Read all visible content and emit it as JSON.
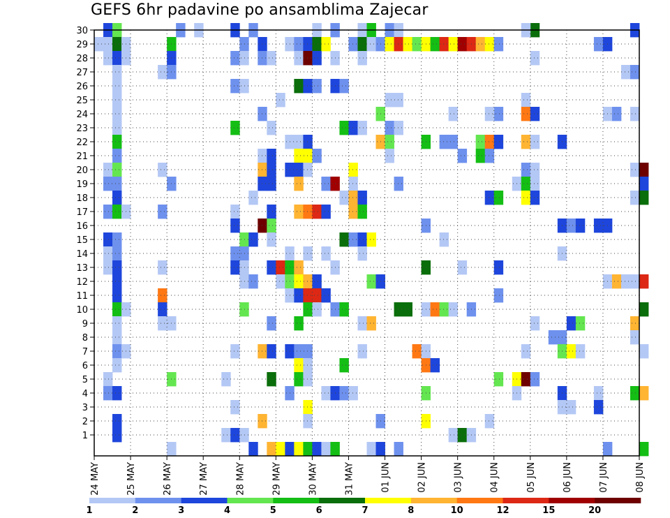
{
  "chart_data": {
    "type": "heatmap",
    "title": "GEFS 6hr padavine po ansamblima Zajecar",
    "xlabel": "",
    "ylabel": "",
    "x_tick_labels": [
      "24 MAY",
      "25 MAY",
      "26 MAY",
      "27 MAY",
      "28 MAY",
      "29 MAY",
      "30 MAY",
      "31 MAY",
      "01 JUN",
      "02 JUN",
      "03 JUN",
      "04 JUN",
      "05 JUN",
      "06 JUN",
      "07 JUN",
      "08 JUN"
    ],
    "y_tick_labels": [
      "1",
      "2",
      "3",
      "4",
      "5",
      "6",
      "7",
      "8",
      "9",
      "10",
      "11",
      "12",
      "13",
      "14",
      "15",
      "16",
      "17",
      "18",
      "19",
      "20",
      "21",
      "22",
      "23",
      "24",
      "25",
      "26",
      "27",
      "28",
      "29",
      "30"
    ],
    "x_range_days": [
      0,
      15
    ],
    "steps_per_day": 4,
    "ylim": [
      0,
      30
    ],
    "grid": true,
    "legend": {
      "placement": "bottom",
      "ticks": [
        "1",
        "2",
        "3",
        "4",
        "5",
        "6",
        "7",
        "8",
        "10",
        "12",
        "15",
        "20"
      ],
      "colors": [
        "#b4c8f5",
        "#6e91ee",
        "#1e46dc",
        "#64e650",
        "#14be14",
        "#0a6e0a",
        "#ffff00",
        "#ffb432",
        "#ff7814",
        "#dc2814",
        "#a00000",
        "#6e0000"
      ]
    },
    "cells": [
      [
        1,
        30,
        2
      ],
      [
        2,
        30,
        3
      ],
      [
        9,
        30,
        1
      ],
      [
        11,
        30,
        0
      ],
      [
        15,
        30,
        2
      ],
      [
        17,
        30,
        1
      ],
      [
        24,
        30,
        0
      ],
      [
        29,
        30,
        0
      ],
      [
        32,
        30,
        1
      ],
      [
        33,
        30,
        0
      ],
      [
        26,
        30,
        1
      ],
      [
        30,
        30,
        4
      ],
      [
        48,
        30,
        5
      ],
      [
        47,
        30,
        0
      ],
      [
        59,
        30,
        2
      ],
      [
        0,
        29,
        0
      ],
      [
        1,
        29,
        0
      ],
      [
        2,
        29,
        5
      ],
      [
        3,
        29,
        0
      ],
      [
        8,
        29,
        4
      ],
      [
        16,
        29,
        1
      ],
      [
        18,
        29,
        2
      ],
      [
        21,
        29,
        0
      ],
      [
        22,
        29,
        1
      ],
      [
        23,
        29,
        2
      ],
      [
        24,
        29,
        5
      ],
      [
        25,
        29,
        6
      ],
      [
        28,
        29,
        1
      ],
      [
        29,
        29,
        5
      ],
      [
        30,
        29,
        0
      ],
      [
        31,
        29,
        1
      ],
      [
        32,
        29,
        6
      ],
      [
        33,
        29,
        9
      ],
      [
        34,
        29,
        6
      ],
      [
        35,
        29,
        3
      ],
      [
        36,
        29,
        6
      ],
      [
        37,
        29,
        4
      ],
      [
        38,
        29,
        9
      ],
      [
        39,
        29,
        6
      ],
      [
        40,
        29,
        10
      ],
      [
        41,
        29,
        9
      ],
      [
        42,
        29,
        7
      ],
      [
        43,
        29,
        6
      ],
      [
        44,
        29,
        1
      ],
      [
        55,
        29,
        1
      ],
      [
        56,
        29,
        2
      ],
      [
        1,
        28,
        0
      ],
      [
        2,
        28,
        2
      ],
      [
        3,
        28,
        0
      ],
      [
        8,
        28,
        2
      ],
      [
        15,
        28,
        1
      ],
      [
        16,
        28,
        0
      ],
      [
        18,
        28,
        1
      ],
      [
        19,
        28,
        0
      ],
      [
        22,
        28,
        0
      ],
      [
        23,
        28,
        11
      ],
      [
        24,
        28,
        2
      ],
      [
        26,
        28,
        0
      ],
      [
        29,
        28,
        0
      ],
      [
        48,
        28,
        0
      ],
      [
        2,
        27,
        0
      ],
      [
        7,
        27,
        0
      ],
      [
        8,
        27,
        1
      ],
      [
        58,
        27,
        0
      ],
      [
        59,
        27,
        1
      ],
      [
        2,
        26,
        0
      ],
      [
        15,
        26,
        1
      ],
      [
        16,
        26,
        0
      ],
      [
        22,
        26,
        5
      ],
      [
        23,
        26,
        2
      ],
      [
        24,
        26,
        1
      ],
      [
        26,
        26,
        2
      ],
      [
        27,
        26,
        1
      ],
      [
        2,
        25,
        0
      ],
      [
        20,
        25,
        0
      ],
      [
        32,
        25,
        0
      ],
      [
        33,
        25,
        0
      ],
      [
        47,
        25,
        0
      ],
      [
        2,
        24,
        0
      ],
      [
        18,
        24,
        1
      ],
      [
        31,
        24,
        3
      ],
      [
        39,
        24,
        0
      ],
      [
        44,
        24,
        1
      ],
      [
        43,
        24,
        0
      ],
      [
        47,
        24,
        8
      ],
      [
        48,
        24,
        2
      ],
      [
        56,
        24,
        0
      ],
      [
        57,
        24,
        1
      ],
      [
        59,
        24,
        0
      ],
      [
        2,
        23,
        0
      ],
      [
        15,
        23,
        4
      ],
      [
        19,
        23,
        0
      ],
      [
        27,
        23,
        4
      ],
      [
        28,
        23,
        2
      ],
      [
        29,
        23,
        0
      ],
      [
        32,
        23,
        1
      ],
      [
        33,
        23,
        0
      ],
      [
        2,
        22,
        4
      ],
      [
        21,
        22,
        0
      ],
      [
        22,
        22,
        0
      ],
      [
        23,
        22,
        2
      ],
      [
        31,
        22,
        7
      ],
      [
        32,
        22,
        3
      ],
      [
        36,
        22,
        4
      ],
      [
        38,
        22,
        1
      ],
      [
        39,
        22,
        1
      ],
      [
        42,
        22,
        3
      ],
      [
        43,
        22,
        8
      ],
      [
        44,
        22,
        2
      ],
      [
        47,
        22,
        7
      ],
      [
        48,
        22,
        0
      ],
      [
        51,
        22,
        2
      ],
      [
        2,
        21,
        1
      ],
      [
        18,
        21,
        0
      ],
      [
        19,
        21,
        2
      ],
      [
        22,
        21,
        6
      ],
      [
        23,
        21,
        6
      ],
      [
        24,
        21,
        1
      ],
      [
        32,
        21,
        0
      ],
      [
        40,
        21,
        1
      ],
      [
        42,
        21,
        4
      ],
      [
        43,
        21,
        1
      ],
      [
        1,
        20,
        0
      ],
      [
        2,
        20,
        3
      ],
      [
        7,
        20,
        0
      ],
      [
        18,
        20,
        7
      ],
      [
        19,
        20,
        2
      ],
      [
        21,
        20,
        2
      ],
      [
        22,
        20,
        2
      ],
      [
        23,
        20,
        0
      ],
      [
        28,
        20,
        6
      ],
      [
        47,
        20,
        1
      ],
      [
        48,
        20,
        0
      ],
      [
        59,
        20,
        0
      ],
      [
        60,
        20,
        11
      ],
      [
        1,
        19,
        1
      ],
      [
        2,
        19,
        1
      ],
      [
        8,
        19,
        1
      ],
      [
        18,
        19,
        2
      ],
      [
        19,
        19,
        2
      ],
      [
        22,
        19,
        7
      ],
      [
        25,
        19,
        1
      ],
      [
        26,
        19,
        10
      ],
      [
        28,
        19,
        0
      ],
      [
        33,
        19,
        1
      ],
      [
        46,
        19,
        0
      ],
      [
        47,
        19,
        4
      ],
      [
        48,
        19,
        0
      ],
      [
        60,
        19,
        2
      ],
      [
        2,
        18,
        2
      ],
      [
        17,
        18,
        0
      ],
      [
        27,
        18,
        0
      ],
      [
        28,
        18,
        7
      ],
      [
        29,
        18,
        2
      ],
      [
        43,
        18,
        2
      ],
      [
        44,
        18,
        4
      ],
      [
        47,
        18,
        6
      ],
      [
        48,
        18,
        2
      ],
      [
        59,
        18,
        0
      ],
      [
        60,
        18,
        5
      ],
      [
        1,
        17,
        1
      ],
      [
        2,
        17,
        4
      ],
      [
        3,
        17,
        0
      ],
      [
        7,
        17,
        1
      ],
      [
        15,
        17,
        0
      ],
      [
        19,
        17,
        2
      ],
      [
        22,
        17,
        7
      ],
      [
        23,
        17,
        8
      ],
      [
        24,
        17,
        9
      ],
      [
        25,
        17,
        2
      ],
      [
        28,
        17,
        7
      ],
      [
        29,
        17,
        4
      ],
      [
        15,
        16,
        2
      ],
      [
        18,
        16,
        11
      ],
      [
        19,
        16,
        3
      ],
      [
        36,
        16,
        1
      ],
      [
        51,
        16,
        2
      ],
      [
        52,
        16,
        1
      ],
      [
        53,
        16,
        2
      ],
      [
        55,
        16,
        2
      ],
      [
        56,
        16,
        2
      ],
      [
        1,
        15,
        2
      ],
      [
        2,
        15,
        1
      ],
      [
        16,
        15,
        3
      ],
      [
        17,
        15,
        2
      ],
      [
        19,
        15,
        0
      ],
      [
        27,
        15,
        5
      ],
      [
        28,
        15,
        1
      ],
      [
        29,
        15,
        2
      ],
      [
        30,
        15,
        6
      ],
      [
        38,
        15,
        0
      ],
      [
        1,
        14,
        0
      ],
      [
        2,
        14,
        1
      ],
      [
        15,
        14,
        1
      ],
      [
        16,
        14,
        1
      ],
      [
        21,
        14,
        0
      ],
      [
        23,
        14,
        0
      ],
      [
        25,
        14,
        0
      ],
      [
        29,
        14,
        0
      ],
      [
        51,
        14,
        0
      ],
      [
        1,
        13,
        0
      ],
      [
        2,
        13,
        2
      ],
      [
        7,
        13,
        0
      ],
      [
        15,
        13,
        2
      ],
      [
        16,
        13,
        0
      ],
      [
        19,
        13,
        2
      ],
      [
        20,
        13,
        9
      ],
      [
        21,
        13,
        4
      ],
      [
        22,
        13,
        7
      ],
      [
        26,
        13,
        0
      ],
      [
        36,
        13,
        5
      ],
      [
        40,
        13,
        0
      ],
      [
        44,
        13,
        2
      ],
      [
        2,
        12,
        2
      ],
      [
        16,
        12,
        0
      ],
      [
        17,
        12,
        1
      ],
      [
        20,
        12,
        0
      ],
      [
        21,
        12,
        3
      ],
      [
        22,
        12,
        6
      ],
      [
        23,
        12,
        7
      ],
      [
        24,
        12,
        2
      ],
      [
        30,
        12,
        3
      ],
      [
        31,
        12,
        2
      ],
      [
        56,
        12,
        0
      ],
      [
        57,
        12,
        7
      ],
      [
        58,
        12,
        0
      ],
      [
        59,
        12,
        0
      ],
      [
        60,
        12,
        9
      ],
      [
        2,
        11,
        2
      ],
      [
        7,
        11,
        8
      ],
      [
        21,
        11,
        0
      ],
      [
        22,
        11,
        2
      ],
      [
        23,
        11,
        9
      ],
      [
        24,
        11,
        9
      ],
      [
        25,
        11,
        2
      ],
      [
        44,
        11,
        1
      ],
      [
        2,
        10,
        4
      ],
      [
        3,
        10,
        0
      ],
      [
        7,
        10,
        2
      ],
      [
        16,
        10,
        3
      ],
      [
        23,
        10,
        4
      ],
      [
        24,
        10,
        0
      ],
      [
        26,
        10,
        1
      ],
      [
        27,
        10,
        4
      ],
      [
        33,
        10,
        5
      ],
      [
        34,
        10,
        5
      ],
      [
        36,
        10,
        0
      ],
      [
        37,
        10,
        8
      ],
      [
        38,
        10,
        3
      ],
      [
        39,
        10,
        0
      ],
      [
        41,
        10,
        1
      ],
      [
        60,
        10,
        5
      ],
      [
        2,
        9,
        0
      ],
      [
        7,
        9,
        0
      ],
      [
        8,
        9,
        0
      ],
      [
        19,
        9,
        1
      ],
      [
        22,
        9,
        4
      ],
      [
        29,
        9,
        0
      ],
      [
        30,
        9,
        7
      ],
      [
        48,
        9,
        0
      ],
      [
        52,
        9,
        2
      ],
      [
        53,
        9,
        3
      ],
      [
        59,
        9,
        7
      ],
      [
        2,
        8,
        0
      ],
      [
        50,
        8,
        1
      ],
      [
        51,
        8,
        1
      ],
      [
        59,
        8,
        0
      ],
      [
        2,
        7,
        1
      ],
      [
        3,
        7,
        0
      ],
      [
        15,
        7,
        0
      ],
      [
        18,
        7,
        7
      ],
      [
        19,
        7,
        2
      ],
      [
        21,
        7,
        2
      ],
      [
        22,
        7,
        1
      ],
      [
        23,
        7,
        1
      ],
      [
        29,
        7,
        0
      ],
      [
        35,
        7,
        8
      ],
      [
        36,
        7,
        0
      ],
      [
        47,
        7,
        0
      ],
      [
        51,
        7,
        3
      ],
      [
        52,
        7,
        6
      ],
      [
        53,
        7,
        0
      ],
      [
        60,
        7,
        0
      ],
      [
        2,
        6,
        0
      ],
      [
        22,
        6,
        6
      ],
      [
        23,
        6,
        0
      ],
      [
        27,
        6,
        4
      ],
      [
        36,
        6,
        8
      ],
      [
        37,
        6,
        2
      ],
      [
        1,
        5,
        0
      ],
      [
        8,
        5,
        3
      ],
      [
        14,
        5,
        0
      ],
      [
        19,
        5,
        5
      ],
      [
        22,
        5,
        4
      ],
      [
        23,
        5,
        0
      ],
      [
        44,
        5,
        3
      ],
      [
        46,
        5,
        6
      ],
      [
        47,
        5,
        11
      ],
      [
        48,
        5,
        1
      ],
      [
        1,
        4,
        1
      ],
      [
        2,
        4,
        2
      ],
      [
        21,
        4,
        1
      ],
      [
        25,
        4,
        0
      ],
      [
        26,
        4,
        2
      ],
      [
        27,
        4,
        1
      ],
      [
        28,
        4,
        0
      ],
      [
        36,
        4,
        3
      ],
      [
        46,
        4,
        0
      ],
      [
        51,
        4,
        2
      ],
      [
        55,
        4,
        0
      ],
      [
        59,
        4,
        4
      ],
      [
        60,
        4,
        7
      ],
      [
        15,
        3,
        0
      ],
      [
        23,
        3,
        6
      ],
      [
        51,
        3,
        0
      ],
      [
        52,
        3,
        0
      ],
      [
        55,
        3,
        2
      ],
      [
        2,
        2,
        2
      ],
      [
        18,
        2,
        7
      ],
      [
        23,
        2,
        0
      ],
      [
        31,
        2,
        1
      ],
      [
        36,
        2,
        6
      ],
      [
        43,
        2,
        0
      ],
      [
        2,
        1,
        2
      ],
      [
        14,
        1,
        0
      ],
      [
        15,
        1,
        2
      ],
      [
        16,
        1,
        0
      ],
      [
        39,
        1,
        0
      ],
      [
        40,
        1,
        5
      ],
      [
        41,
        1,
        0
      ],
      [
        8,
        0,
        0
      ],
      [
        17,
        0,
        2
      ],
      [
        19,
        0,
        7
      ],
      [
        20,
        0,
        6
      ],
      [
        21,
        0,
        2
      ],
      [
        22,
        0,
        6
      ],
      [
        23,
        0,
        4
      ],
      [
        24,
        0,
        2
      ],
      [
        25,
        0,
        0
      ],
      [
        26,
        0,
        4
      ],
      [
        30,
        0,
        0
      ],
      [
        31,
        0,
        2
      ],
      [
        33,
        0,
        1
      ],
      [
        56,
        0,
        1
      ],
      [
        60,
        0,
        4
      ]
    ]
  }
}
